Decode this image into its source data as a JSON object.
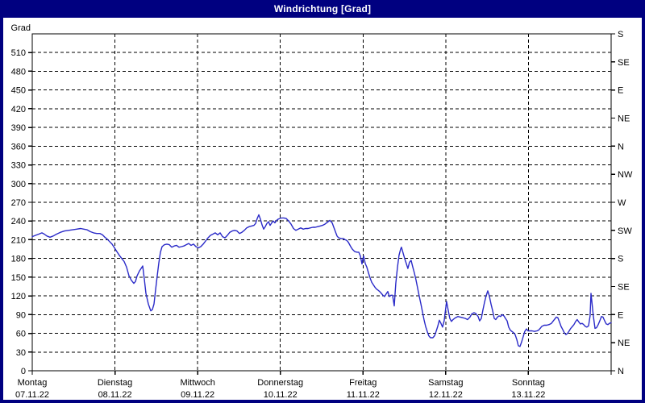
{
  "window": {
    "title": "Windrichtung [Grad]"
  },
  "colors": {
    "titlebar_bg": "#000080",
    "titlebar_text": "#ffffff",
    "frame": "#000080",
    "plot_bg": "#ffffff",
    "axis": "#000000",
    "grid": "#000000",
    "line": "#2a2ac8"
  },
  "chart_data": {
    "type": "line",
    "title": "Windrichtung [Grad]",
    "grid": "dashed",
    "legend": "none",
    "y_axis": {
      "label": "Grad",
      "min": 0,
      "max": 540,
      "tick_step": 30,
      "tick_labels": [
        0,
        30,
        60,
        90,
        120,
        150,
        180,
        210,
        240,
        270,
        300,
        330,
        360,
        390,
        420,
        450,
        480,
        510
      ]
    },
    "y_axis_right": {
      "unit": "compass",
      "ticks": [
        {
          "deg": 540,
          "label": "S"
        },
        {
          "deg": 495,
          "label": "SE"
        },
        {
          "deg": 450,
          "label": "E"
        },
        {
          "deg": 405,
          "label": "NE"
        },
        {
          "deg": 360,
          "label": "N"
        },
        {
          "deg": 315,
          "label": "NW"
        },
        {
          "deg": 270,
          "label": "W"
        },
        {
          "deg": 225,
          "label": "SW"
        },
        {
          "deg": 180,
          "label": "S"
        },
        {
          "deg": 135,
          "label": "SE"
        },
        {
          "deg": 90,
          "label": "E"
        },
        {
          "deg": 45,
          "label": "NE"
        },
        {
          "deg": 0,
          "label": "N"
        }
      ]
    },
    "x_axis": {
      "range_days": [
        0,
        7
      ],
      "days": [
        {
          "name": "Montag",
          "date": "07.11.22"
        },
        {
          "name": "Dienstag",
          "date": "08.11.22"
        },
        {
          "name": "Mittwoch",
          "date": "09.11.22"
        },
        {
          "name": "Donnerstag",
          "date": "10.11.22"
        },
        {
          "name": "Freitag",
          "date": "11.11.22"
        },
        {
          "name": "Samstag",
          "date": "12.11.22"
        },
        {
          "name": "Sonntag",
          "date": "13.11.22"
        }
      ]
    },
    "series": [
      {
        "name": "Windrichtung",
        "color": "#2a2ac8",
        "points_t_deg": [
          [
            0,
            215
          ],
          [
            0.039,
            217
          ],
          [
            0.078,
            219
          ],
          [
            0.117,
            221
          ],
          [
            0.146,
            219
          ],
          [
            0.176,
            216
          ],
          [
            0.214,
            214
          ],
          [
            0.253,
            216
          ],
          [
            0.293,
            219
          ],
          [
            0.341,
            222
          ],
          [
            0.39,
            224
          ],
          [
            0.439,
            225
          ],
          [
            0.487,
            226
          ],
          [
            0.536,
            227
          ],
          [
            0.585,
            228
          ],
          [
            0.624,
            227
          ],
          [
            0.663,
            226
          ],
          [
            0.702,
            223
          ],
          [
            0.741,
            221
          ],
          [
            0.78,
            220
          ],
          [
            0.819,
            220
          ],
          [
            0.848,
            218
          ],
          [
            0.877,
            214
          ],
          [
            0.907,
            211
          ],
          [
            0.936,
            207
          ],
          [
            0.965,
            203
          ],
          [
            0.994,
            197
          ],
          [
            1.024,
            191
          ],
          [
            1.053,
            185
          ],
          [
            1.082,
            180
          ],
          [
            1.111,
            175
          ],
          [
            1.141,
            166
          ],
          [
            1.17,
            152
          ],
          [
            1.199,
            145
          ],
          [
            1.228,
            140
          ],
          [
            1.248,
            143
          ],
          [
            1.267,
            152
          ],
          [
            1.297,
            160
          ],
          [
            1.316,
            164
          ],
          [
            1.336,
            168
          ],
          [
            1.355,
            147
          ],
          [
            1.375,
            124
          ],
          [
            1.404,
            107
          ],
          [
            1.433,
            96
          ],
          [
            1.453,
            98
          ],
          [
            1.472,
            107
          ],
          [
            1.492,
            130
          ],
          [
            1.511,
            152
          ],
          [
            1.531,
            173
          ],
          [
            1.55,
            190
          ],
          [
            1.57,
            199
          ],
          [
            1.599,
            202
          ],
          [
            1.628,
            203
          ],
          [
            1.657,
            202
          ],
          [
            1.687,
            198
          ],
          [
            1.716,
            200
          ],
          [
            1.745,
            201
          ],
          [
            1.774,
            198
          ],
          [
            1.804,
            199
          ],
          [
            1.833,
            200
          ],
          [
            1.862,
            202
          ],
          [
            1.891,
            204
          ],
          [
            1.921,
            201
          ],
          [
            1.95,
            203
          ],
          [
            1.979,
            199
          ],
          [
            2.008,
            197
          ],
          [
            2.038,
            199
          ],
          [
            2.067,
            203
          ],
          [
            2.096,
            208
          ],
          [
            2.125,
            213
          ],
          [
            2.155,
            217
          ],
          [
            2.184,
            219
          ],
          [
            2.213,
            221
          ],
          [
            2.242,
            218
          ],
          [
            2.272,
            221
          ],
          [
            2.301,
            215
          ],
          [
            2.33,
            213
          ],
          [
            2.359,
            217
          ],
          [
            2.389,
            222
          ],
          [
            2.418,
            224
          ],
          [
            2.447,
            225
          ],
          [
            2.476,
            224
          ],
          [
            2.506,
            220
          ],
          [
            2.535,
            222
          ],
          [
            2.564,
            225
          ],
          [
            2.593,
            229
          ],
          [
            2.623,
            231
          ],
          [
            2.652,
            232
          ],
          [
            2.681,
            233
          ],
          [
            2.701,
            236
          ],
          [
            2.72,
            244
          ],
          [
            2.74,
            250
          ],
          [
            2.759,
            243
          ],
          [
            2.779,
            234
          ],
          [
            2.798,
            227
          ],
          [
            2.818,
            231
          ],
          [
            2.837,
            236
          ],
          [
            2.857,
            239
          ],
          [
            2.876,
            233
          ],
          [
            2.896,
            237
          ],
          [
            2.915,
            240
          ],
          [
            2.935,
            237
          ],
          [
            2.954,
            241
          ],
          [
            2.974,
            243
          ],
          [
            2.993,
            244
          ],
          [
            3.013,
            245
          ],
          [
            3.042,
            245
          ],
          [
            3.071,
            244
          ],
          [
            3.1,
            240
          ],
          [
            3.13,
            235
          ],
          [
            3.159,
            228
          ],
          [
            3.188,
            225
          ],
          [
            3.217,
            227
          ],
          [
            3.247,
            229
          ],
          [
            3.276,
            227
          ],
          [
            3.305,
            228
          ],
          [
            3.334,
            228
          ],
          [
            3.364,
            229
          ],
          [
            3.393,
            230
          ],
          [
            3.422,
            230
          ],
          [
            3.451,
            231
          ],
          [
            3.481,
            232
          ],
          [
            3.51,
            233
          ],
          [
            3.539,
            235
          ],
          [
            3.568,
            238
          ],
          [
            3.598,
            241
          ],
          [
            3.627,
            237
          ],
          [
            3.646,
            230
          ],
          [
            3.666,
            223
          ],
          [
            3.685,
            216
          ],
          [
            3.705,
            213
          ],
          [
            3.734,
            212
          ],
          [
            3.763,
            212
          ],
          [
            3.783,
            210
          ],
          [
            3.802,
            209
          ],
          [
            3.822,
            206
          ],
          [
            3.851,
            199
          ],
          [
            3.87,
            195
          ],
          [
            3.9,
            191
          ],
          [
            3.929,
            190
          ],
          [
            3.948,
            190
          ],
          [
            3.968,
            184
          ],
          [
            3.987,
            171
          ],
          [
            3.997,
            179
          ],
          [
            4.007,
            184
          ],
          [
            4.026,
            172
          ],
          [
            4.046,
            166
          ],
          [
            4.065,
            157
          ],
          [
            4.085,
            149
          ],
          [
            4.104,
            142
          ],
          [
            4.124,
            138
          ],
          [
            4.143,
            134
          ],
          [
            4.162,
            131
          ],
          [
            4.182,
            129
          ],
          [
            4.201,
            127
          ],
          [
            4.221,
            124
          ],
          [
            4.24,
            121
          ],
          [
            4.26,
            119
          ],
          [
            4.279,
            123
          ],
          [
            4.299,
            127
          ],
          [
            4.318,
            119
          ],
          [
            4.337,
            121
          ],
          [
            4.357,
            121
          ],
          [
            4.377,
            104
          ],
          [
            4.396,
            140
          ],
          [
            4.415,
            165
          ],
          [
            4.435,
            185
          ],
          [
            4.454,
            195
          ],
          [
            4.464,
            198
          ],
          [
            4.484,
            189
          ],
          [
            4.503,
            180
          ],
          [
            4.523,
            172
          ],
          [
            4.542,
            164
          ],
          [
            4.562,
            174
          ],
          [
            4.581,
            177
          ],
          [
            4.6,
            167
          ],
          [
            4.62,
            157
          ],
          [
            4.64,
            146
          ],
          [
            4.659,
            133
          ],
          [
            4.679,
            120
          ],
          [
            4.698,
            108
          ],
          [
            4.718,
            95
          ],
          [
            4.737,
            82
          ],
          [
            4.757,
            71
          ],
          [
            4.776,
            63
          ],
          [
            4.796,
            56
          ],
          [
            4.815,
            53
          ],
          [
            4.844,
            53
          ],
          [
            4.864,
            56
          ],
          [
            4.883,
            63
          ],
          [
            4.903,
            71
          ],
          [
            4.922,
            81
          ],
          [
            4.942,
            76
          ],
          [
            4.961,
            70
          ],
          [
            4.981,
            80
          ],
          [
            5,
            101
          ],
          [
            5.01,
            111
          ],
          [
            5.03,
            97
          ],
          [
            5.049,
            84
          ],
          [
            5.069,
            79
          ],
          [
            5.088,
            82
          ],
          [
            5.117,
            85
          ],
          [
            5.147,
            87
          ],
          [
            5.176,
            86
          ],
          [
            5.205,
            85
          ],
          [
            5.234,
            84
          ],
          [
            5.264,
            82
          ],
          [
            5.293,
            86
          ],
          [
            5.313,
            91
          ],
          [
            5.342,
            93
          ],
          [
            5.361,
            92
          ],
          [
            5.391,
            87
          ],
          [
            5.41,
            80
          ],
          [
            5.43,
            84
          ],
          [
            5.449,
            97
          ],
          [
            5.469,
            110
          ],
          [
            5.488,
            120
          ],
          [
            5.508,
            128
          ],
          [
            5.527,
            120
          ],
          [
            5.547,
            107
          ],
          [
            5.566,
            97
          ],
          [
            5.586,
            84
          ],
          [
            5.605,
            82
          ],
          [
            5.625,
            86
          ],
          [
            5.644,
            88
          ],
          [
            5.664,
            87
          ],
          [
            5.683,
            90
          ],
          [
            5.703,
            88
          ],
          [
            5.722,
            84
          ],
          [
            5.742,
            80
          ],
          [
            5.761,
            70
          ],
          [
            5.781,
            65
          ],
          [
            5.8,
            63
          ],
          [
            5.82,
            61
          ],
          [
            5.839,
            58
          ],
          [
            5.859,
            50
          ],
          [
            5.878,
            40
          ],
          [
            5.898,
            39
          ],
          [
            5.917,
            46
          ],
          [
            5.937,
            55
          ],
          [
            5.956,
            63
          ],
          [
            5.976,
            67
          ],
          [
            5.995,
            64
          ],
          [
            6.015,
            64
          ],
          [
            6.044,
            64
          ],
          [
            6.073,
            63
          ],
          [
            6.103,
            64
          ],
          [
            6.122,
            65
          ],
          [
            6.142,
            68
          ],
          [
            6.161,
            71
          ],
          [
            6.19,
            73
          ],
          [
            6.22,
            73
          ],
          [
            6.249,
            74
          ],
          [
            6.278,
            76
          ],
          [
            6.307,
            81
          ],
          [
            6.337,
            86
          ],
          [
            6.356,
            85
          ],
          [
            6.376,
            78
          ],
          [
            6.395,
            71
          ],
          [
            6.415,
            66
          ],
          [
            6.434,
            61
          ],
          [
            6.454,
            58
          ],
          [
            6.473,
            60
          ],
          [
            6.493,
            64
          ],
          [
            6.512,
            68
          ],
          [
            6.532,
            71
          ],
          [
            6.551,
            74
          ],
          [
            6.571,
            79
          ],
          [
            6.59,
            82
          ],
          [
            6.61,
            78
          ],
          [
            6.629,
            75
          ],
          [
            6.649,
            76
          ],
          [
            6.668,
            74
          ],
          [
            6.688,
            71
          ],
          [
            6.707,
            70
          ],
          [
            6.727,
            72
          ],
          [
            6.746,
            88
          ],
          [
            6.756,
            124
          ],
          [
            6.766,
            112
          ],
          [
            6.785,
            88
          ],
          [
            6.805,
            68
          ],
          [
            6.824,
            69
          ],
          [
            6.844,
            74
          ],
          [
            6.863,
            80
          ],
          [
            6.883,
            87
          ],
          [
            6.902,
            86
          ],
          [
            6.922,
            80
          ],
          [
            6.941,
            75
          ],
          [
            6.961,
            74
          ],
          [
            6.98,
            76
          ],
          [
            7,
            77
          ]
        ]
      }
    ]
  }
}
